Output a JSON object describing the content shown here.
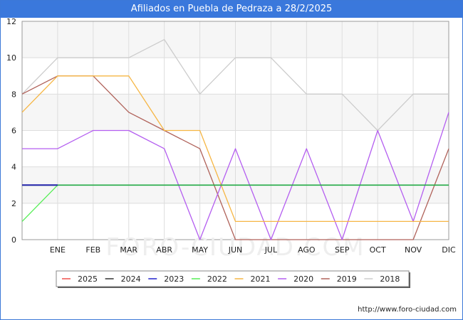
{
  "chart_data": {
    "type": "line",
    "title": "Afiliados en Puebla de Pedraza a 28/2/2025",
    "watermark": "FORO-CIUDAD.COM",
    "source": "http://www.foro-ciudad.com",
    "categories": [
      "",
      "ENE",
      "FEB",
      "MAR",
      "ABR",
      "MAY",
      "JUN",
      "JUL",
      "AGO",
      "SEP",
      "OCT",
      "NOV",
      "DIC"
    ],
    "xlabel": "",
    "ylabel": "",
    "ylim": [
      0,
      12
    ],
    "yticks": [
      "0",
      "2",
      "4",
      "6",
      "8",
      "10",
      "12"
    ],
    "grid": true,
    "legend_position": "bottom",
    "series": [
      {
        "name": "2025",
        "color": "#f0504c",
        "values": [
          null,
          null,
          null,
          null,
          null,
          null,
          null,
          null,
          null,
          null,
          null,
          null,
          null
        ]
      },
      {
        "name": "2024",
        "color": "#333333",
        "values": [
          3,
          3,
          null,
          null,
          null,
          null,
          null,
          null,
          null,
          null,
          null,
          null,
          null
        ]
      },
      {
        "name": "2023",
        "color": "#2222cc",
        "values": [
          3,
          3,
          3,
          3,
          3,
          3,
          3,
          3,
          3,
          3,
          3,
          3,
          3
        ]
      },
      {
        "name": "2022",
        "color": "#55ee55",
        "values": [
          1,
          3,
          3,
          3,
          3,
          3,
          3,
          3,
          3,
          3,
          3,
          3,
          3
        ]
      },
      {
        "name": "2021",
        "color": "#f6b644",
        "values": [
          7,
          9,
          9,
          9,
          6,
          6,
          1,
          1,
          1,
          1,
          1,
          1,
          1
        ]
      },
      {
        "name": "2020",
        "color": "#b45ef0",
        "values": [
          5,
          5,
          6,
          6,
          5,
          0,
          5,
          0,
          5,
          0,
          6,
          1,
          7
        ]
      },
      {
        "name": "2019",
        "color": "#b0625a",
        "values": [
          8,
          9,
          9,
          7,
          6,
          5,
          0,
          0,
          0,
          0,
          0,
          0,
          5
        ]
      },
      {
        "name": "2018",
        "color": "#cccccc",
        "values": [
          8,
          10,
          10,
          10,
          11,
          8,
          10,
          10,
          8,
          8,
          6,
          8,
          8
        ]
      }
    ],
    "overlay_line": {
      "name": "2023",
      "color": "#22aa44",
      "values": [
        3,
        3,
        3,
        3,
        3,
        3,
        3,
        3,
        3,
        3,
        3,
        3,
        3
      ]
    }
  }
}
